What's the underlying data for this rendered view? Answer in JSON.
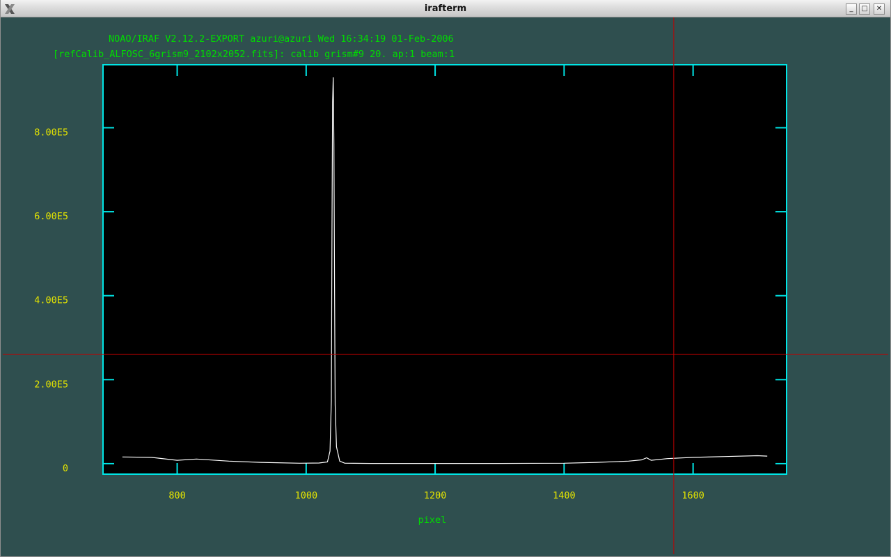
{
  "window": {
    "title": "irafterm",
    "controls": {
      "minimize": "_",
      "maximize": "□",
      "close": "✕"
    }
  },
  "plot": {
    "header_line1": "NOAO/IRAF V2.12.2-EXPORT azuri@azuri Wed 16:34:19 01-Feb-2006",
    "header_line2": "[refCalib_ALFOSC_6grism9_2102x2052.fits]: calib grism#9 20. ap:1 beam:1",
    "colors": {
      "background": "#2f4f4f",
      "axes": "#00e5e5",
      "header_text": "#00dd00",
      "tick_labels": "#e5e500",
      "trace": "#ffffff",
      "cursor": "#c00000"
    }
  },
  "chart_data": {
    "type": "line",
    "title": "[refCalib_ALFOSC_6grism9_2102x2052.fits]: calib grism#9 20. ap:1 beam:1",
    "xlabel": "pixel",
    "ylabel": "",
    "xlim": [
      685,
      1745
    ],
    "ylim": [
      -25000,
      950000
    ],
    "xticks": [
      800,
      1000,
      1200,
      1400,
      1600
    ],
    "xtick_labels": [
      "800",
      "1000",
      "1200",
      "1400",
      "1600"
    ],
    "yticks": [
      0,
      200000,
      400000,
      600000,
      800000
    ],
    "ytick_labels": [
      "0",
      "2.00E5",
      "4.00E5",
      "6.00E5",
      "8.00E5"
    ],
    "grid": false,
    "series": [
      {
        "x": [
          715,
          760,
          800,
          830,
          880,
          930,
          990,
          1020,
          1033,
          1037,
          1039,
          1040,
          1041,
          1042,
          1043,
          1044,
          1045,
          1047,
          1052,
          1060,
          1100,
          1200,
          1300,
          1400,
          1450,
          1500,
          1520,
          1528,
          1535,
          1560,
          1600,
          1650,
          1700,
          1715
        ],
        "y": [
          16000,
          15000,
          8000,
          11000,
          6000,
          3000,
          1000,
          1500,
          4000,
          30000,
          150000,
          550000,
          860000,
          920000,
          760000,
          420000,
          140000,
          40000,
          6000,
          1000,
          500,
          500,
          500,
          1000,
          3000,
          6000,
          9000,
          14000,
          8000,
          12000,
          15000,
          17000,
          19000,
          18000
        ]
      }
    ],
    "cursor": {
      "x": 1570,
      "y": 260000
    }
  }
}
